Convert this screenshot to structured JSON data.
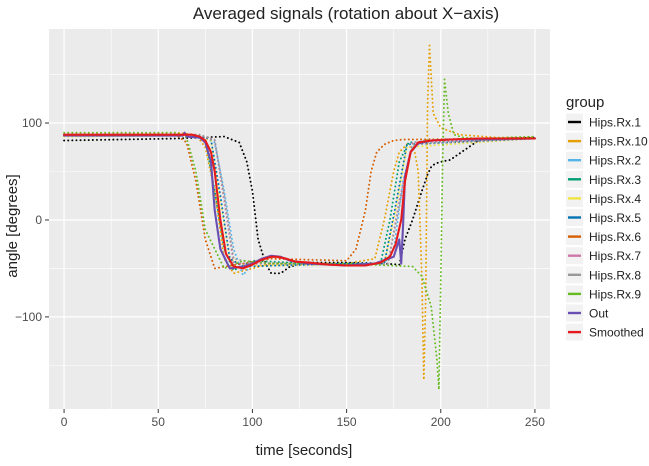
{
  "chart_data": {
    "type": "line",
    "title": "Averaged signals (rotation about X−axis)",
    "xlabel": "time [seconds]",
    "ylabel": "angle [degrees]",
    "xlim": [
      -8,
      258
    ],
    "ylim": [
      -195,
      197
    ],
    "x_ticks": [
      0,
      50,
      100,
      150,
      200,
      250
    ],
    "x_tick_labels": [
      "0",
      "50",
      "100",
      "150",
      "200",
      "250"
    ],
    "y_ticks": [
      -100,
      0,
      100
    ],
    "y_tick_labels": [
      "−100",
      "0",
      "100"
    ],
    "grid": true,
    "legend_title": "group",
    "legend_position": "right",
    "series": [
      {
        "name": "Hips.Rx.1",
        "color": "#000000",
        "style": "dotted",
        "x": [
          0,
          60,
          85,
          93,
          97,
          100,
          103,
          107,
          110,
          115,
          120,
          130,
          150,
          170,
          178,
          181,
          185,
          190,
          193,
          195,
          197,
          200,
          205,
          220,
          230,
          250
        ],
        "y": [
          82,
          84,
          86,
          80,
          60,
          30,
          -20,
          -45,
          -55,
          -55,
          -48,
          -44,
          -44,
          -45,
          -46,
          -20,
          0,
          30,
          47,
          55,
          58,
          60,
          62,
          82,
          84,
          85
        ]
      },
      {
        "name": "Hips.Rx.10",
        "color": "#E69F00",
        "style": "dotted",
        "x": [
          0,
          60,
          70,
          75,
          80,
          85,
          90,
          110,
          150,
          165,
          170,
          175,
          178,
          182,
          186,
          188,
          190,
          191,
          192,
          193,
          194,
          196,
          200,
          210,
          230,
          250
        ],
        "y": [
          87,
          90,
          88,
          75,
          30,
          -40,
          -55,
          -45,
          -45,
          -40,
          0,
          50,
          70,
          78,
          72,
          50,
          -60,
          -165,
          -80,
          120,
          180,
          110,
          95,
          88,
          85,
          85
        ]
      },
      {
        "name": "Hips.Rx.2",
        "color": "#56B4E9",
        "style": "dotted",
        "x": [
          0,
          70,
          80,
          85,
          90,
          95,
          100,
          150,
          170,
          175,
          180,
          185,
          190,
          250
        ],
        "y": [
          88,
          88,
          80,
          30,
          -30,
          -57,
          -45,
          -45,
          -45,
          -30,
          40,
          75,
          82,
          84
        ]
      },
      {
        "name": "Hips.Rx.3",
        "color": "#009E73",
        "style": "dotted",
        "x": [
          0,
          65,
          75,
          80,
          85,
          90,
          100,
          150,
          168,
          173,
          178,
          183,
          250
        ],
        "y": [
          87,
          88,
          83,
          30,
          -30,
          -52,
          -42,
          -47,
          -45,
          0,
          60,
          80,
          84
        ]
      },
      {
        "name": "Hips.Rx.4",
        "color": "#F0E442",
        "style": "dotted",
        "x": [
          0,
          70,
          78,
          83,
          88,
          95,
          150,
          170,
          176,
          182,
          250
        ],
        "y": [
          86,
          87,
          82,
          20,
          -40,
          -47,
          -46,
          -45,
          10,
          75,
          84
        ]
      },
      {
        "name": "Hips.Rx.5",
        "color": "#0072B2",
        "style": "dotted",
        "x": [
          0,
          70,
          78,
          83,
          88,
          95,
          150,
          170,
          176,
          182,
          250
        ],
        "y": [
          87,
          88,
          83,
          25,
          -40,
          -48,
          -45,
          -45,
          15,
          78,
          84
        ]
      },
      {
        "name": "Hips.Rx.6",
        "color": "#D55E00",
        "style": "dotted",
        "x": [
          0,
          60,
          65,
          70,
          75,
          80,
          110,
          150,
          155,
          160,
          163,
          166,
          170,
          175,
          180,
          250
        ],
        "y": [
          87,
          87,
          80,
          40,
          -20,
          -50,
          -40,
          -42,
          -30,
          10,
          50,
          70,
          78,
          82,
          83,
          84
        ]
      },
      {
        "name": "Hips.Rx.7",
        "color": "#CC79A7",
        "style": "dotted",
        "x": [
          0,
          72,
          80,
          85,
          90,
          100,
          150,
          172,
          178,
          185,
          250
        ],
        "y": [
          88,
          88,
          82,
          20,
          -45,
          -45,
          -46,
          -45,
          20,
          80,
          84
        ]
      },
      {
        "name": "Hips.Rx.8",
        "color": "#999999",
        "style": "dotted",
        "x": [
          0,
          72,
          80,
          85,
          90,
          100,
          150,
          172,
          178,
          185,
          250
        ],
        "y": [
          87,
          88,
          83,
          25,
          -40,
          -44,
          -46,
          -45,
          15,
          78,
          84
        ]
      },
      {
        "name": "Hips.Rx.9",
        "color": "#66BB22",
        "style": "dotted",
        "x": [
          0,
          60,
          65,
          70,
          75,
          85,
          95,
          110,
          150,
          185,
          190,
          195,
          198,
          199,
          200,
          201,
          202,
          204,
          207,
          212,
          220,
          250
        ],
        "y": [
          90,
          90,
          85,
          50,
          -10,
          -50,
          -42,
          -45,
          -45,
          -48,
          -58,
          -90,
          -145,
          -175,
          -60,
          60,
          145,
          110,
          88,
          85,
          84,
          86
        ]
      },
      {
        "name": "Out",
        "color": "#6A4FB3",
        "style": "solid",
        "x": [
          0,
          63,
          64,
          65,
          72,
          75,
          78,
          80,
          83,
          88,
          95,
          100,
          105,
          110,
          115,
          120,
          130,
          150,
          165,
          175,
          178,
          179,
          180,
          181,
          184,
          188,
          195,
          205,
          250
        ],
        "y": [
          87,
          87,
          90,
          86,
          85,
          80,
          60,
          10,
          -30,
          -50,
          -48,
          -45,
          -40,
          -37,
          -38,
          -42,
          -45,
          -47,
          -45,
          -38,
          -20,
          -45,
          -5,
          45,
          70,
          79,
          82,
          83,
          84
        ]
      },
      {
        "name": "Smoothed",
        "color": "#E41A1C",
        "style": "solid",
        "x": [
          0,
          20,
          40,
          60,
          68,
          72,
          75,
          78,
          80,
          83,
          86,
          90,
          95,
          100,
          105,
          110,
          113,
          118,
          123,
          130,
          140,
          150,
          160,
          168,
          173,
          176,
          179,
          181,
          184,
          188,
          195,
          205,
          220,
          250
        ],
        "y": [
          88,
          88,
          88,
          88,
          88,
          86,
          82,
          70,
          50,
          0,
          -35,
          -48,
          -50,
          -46,
          -41,
          -38,
          -38,
          -40,
          -43,
          -44,
          -46,
          -47,
          -47,
          -44,
          -38,
          -25,
          0,
          40,
          70,
          80,
          82,
          83,
          84,
          84
        ]
      }
    ]
  }
}
